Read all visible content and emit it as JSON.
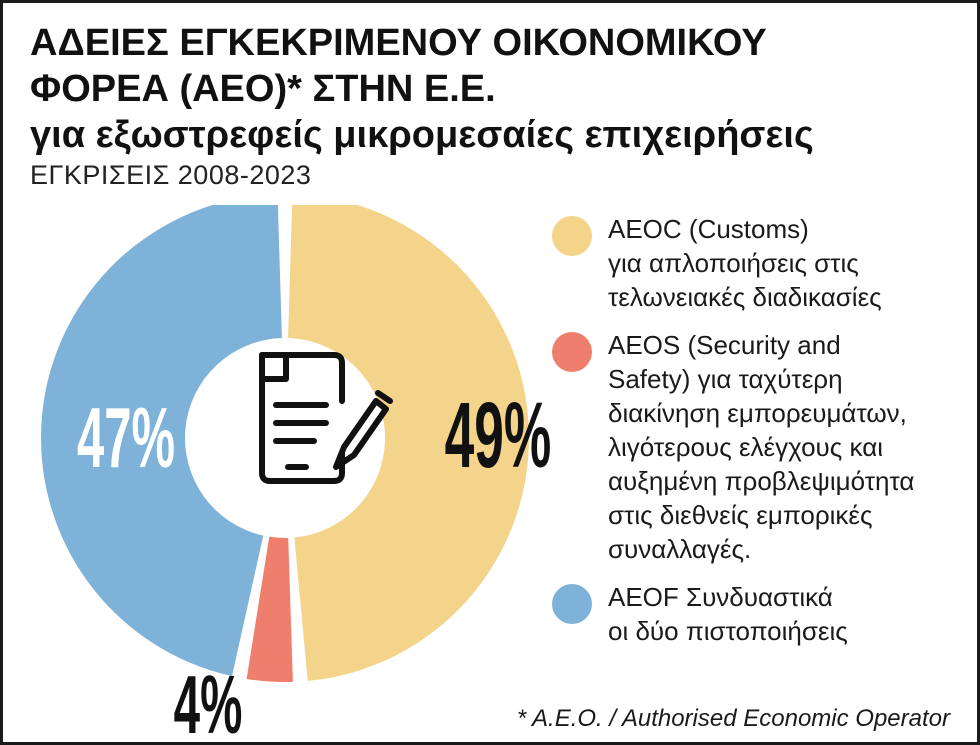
{
  "header": {
    "title_line1": "ΑΔΕΙΕΣ ΕΓΚΕΚΡΙΜΕΝΟΥ ΟΙΚΟΝΟΜΙΚΟΥ",
    "title_line2": "ΦΟΡΕΑ (ΑΕΟ)* ΣΤΗΝ Ε.Ε.",
    "title_line3": "για εξωστρεφείς μικρομεσαίες επιχειρήσεις",
    "subtitle": "ΕΓΚΡΙΣΕΙΣ 2008-2023"
  },
  "icon": "document-pen-icon",
  "chart_data": {
    "type": "pie",
    "variant": "donut",
    "title": "ΑΔΕΙΕΣ ΕΓΚΕΚΡΙΜΕΝΟΥ ΟΙΚΟΝΟΜΙΚΟΥ ΦΟΡΕΑ (ΑΕΟ)* ΣΤΗΝ Ε.Ε. για εξωστρεφείς μικρομεσαίες επιχειρήσεις",
    "subtitle": "ΕΓΚΡΙΣΕΙΣ 2008-2023",
    "unit": "%",
    "slices": [
      {
        "name": "AEOC",
        "value": 49,
        "label": "49%",
        "color": "#f3d48a",
        "legend_lines": [
          "AEOC (Customs)",
          "για απλοποιήσεις στις",
          "τελωνειακές διαδικασίες"
        ]
      },
      {
        "name": "AEOS",
        "value": 4,
        "label": "4%",
        "color": "#ef7e6d",
        "legend_lines": [
          "AEOS (Security and",
          "Safety) για ταχύτερη",
          "διακίνηση εμπορευμάτων,",
          "λιγότερους ελέγχους και",
          "αυξημένη προβλεψιμότητα",
          "στις διεθνείς εμπορικές",
          "συναλλαγές."
        ]
      },
      {
        "name": "AEOF",
        "value": 47,
        "label": "47%",
        "color": "#7fb2d8",
        "legend_lines": [
          "AEOF Συνδυαστικά",
          "οι δύο πιστοποιήσεις"
        ]
      }
    ],
    "legend_position": "right"
  },
  "footnote": "* A.E.O. / Authorised Economic Operator"
}
